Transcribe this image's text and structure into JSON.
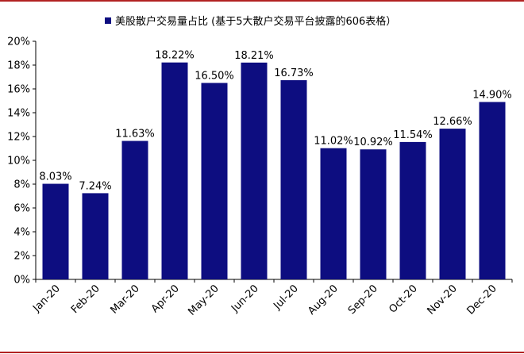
{
  "chart_data": {
    "type": "bar",
    "legend": "美股散户交易量占比 (基于5大散户交易平台披露的606表格）",
    "legend_position": "top",
    "categories": [
      "Jan-20",
      "Feb-20",
      "Mar-20",
      "Apr-20",
      "May-20",
      "Jun-20",
      "Jul-20",
      "Aug-20",
      "Sep-20",
      "Oct-20",
      "Nov-20",
      "Dec-20"
    ],
    "values": [
      8.03,
      7.24,
      11.63,
      18.22,
      16.5,
      18.21,
      16.73,
      11.02,
      10.92,
      11.54,
      12.66,
      14.9
    ],
    "data_labels": [
      "8.03%",
      "7.24%",
      "11.63%",
      "18.22%",
      "16.50%",
      "18.21%",
      "16.73%",
      "11.02%",
      "10.92%",
      "11.54%",
      "12.66%",
      "14.90%"
    ],
    "y_ticks": [
      "0%",
      "2%",
      "4%",
      "6%",
      "8%",
      "10%",
      "12%",
      "14%",
      "16%",
      "18%",
      "20%"
    ],
    "ylim": [
      0,
      20
    ],
    "grid": false,
    "colors": {
      "bar": "#0d0d80",
      "frame": "#b22222"
    }
  }
}
